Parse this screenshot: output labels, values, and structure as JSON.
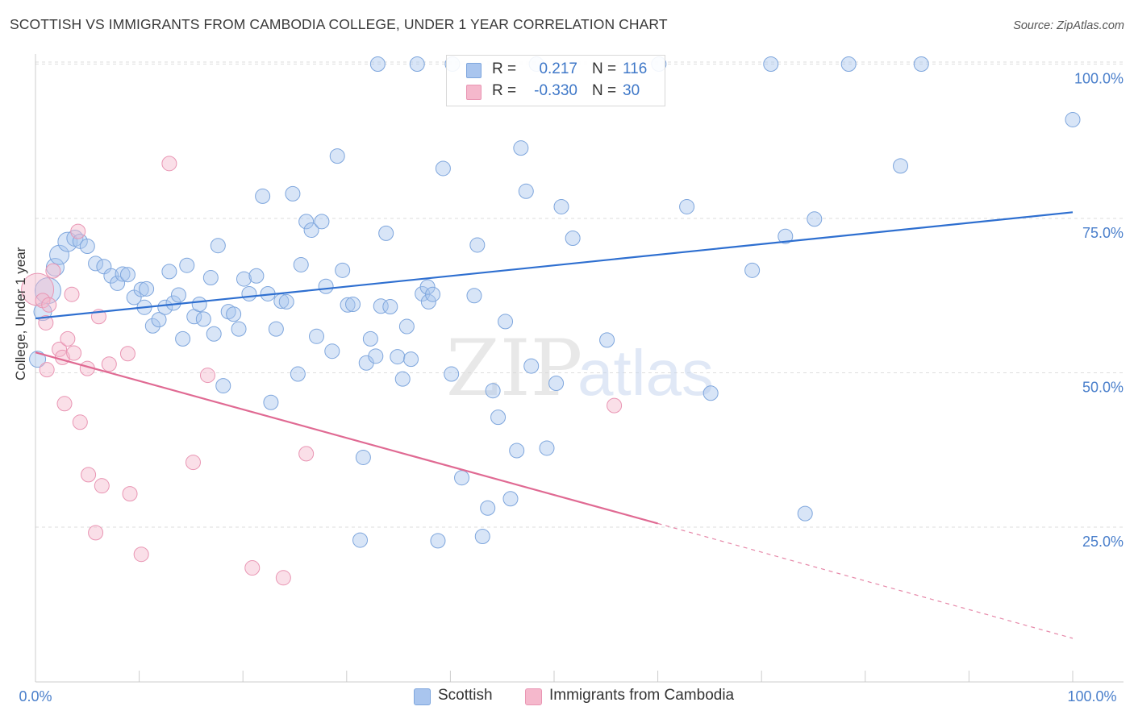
{
  "header": {
    "title": "SCOTTISH VS IMMIGRANTS FROM CAMBODIA COLLEGE, UNDER 1 YEAR CORRELATION CHART",
    "source": "Source: ZipAtlas.com"
  },
  "legend": {
    "rows": [
      {
        "r_label": "R =",
        "r_value": "0.217",
        "n_label": "N =",
        "n_value": "116",
        "color": "#a9c5ee"
      },
      {
        "r_label": "R =",
        "r_value": "-0.330",
        "n_label": "N =",
        "n_value": "30",
        "color": "#f5b8cc"
      }
    ]
  },
  "watermark": {
    "zip": "ZIP",
    "atlas": "atlas"
  },
  "colors": {
    "blue_fill": "#a9c5ee",
    "blue_stroke": "#7ea6dd",
    "blue_line": "#2e6fd0",
    "pink_fill": "#f5b8cc",
    "pink_stroke": "#e995b3",
    "pink_line": "#e06a93",
    "axis_label": "#4a7fcb",
    "grid": "#dddddd"
  },
  "chart_data": {
    "type": "scatter",
    "title": "SCOTTISH VS IMMIGRANTS FROM CAMBODIA COLLEGE, UNDER 1 YEAR CORRELATION CHART",
    "xlabel": "",
    "ylabel": "College, Under 1 year",
    "xlim": [
      0,
      100
    ],
    "ylim": [
      0,
      103
    ],
    "x_tick_labels": [
      "0.0%",
      "100.0%"
    ],
    "y_ticks": [
      25,
      50,
      75,
      100
    ],
    "y_tick_labels": [
      "25.0%",
      "50.0%",
      "75.0%",
      "100.0%"
    ],
    "grid": true,
    "legend_position": "top-center",
    "series": [
      {
        "name": "Scottish",
        "color": "#a9c5ee",
        "trend": {
          "x0": 0,
          "y0": 58.8,
          "x1": 100,
          "y1": 76.0,
          "style": "solid"
        },
        "points": [
          [
            0.2,
            52.2,
            10
          ],
          [
            0.7,
            59.9,
            11
          ],
          [
            1.2,
            63.3,
            16
          ],
          [
            1.9,
            67.1,
            11
          ],
          [
            2.3,
            69.1,
            12
          ],
          [
            3.1,
            71.2,
            12
          ],
          [
            3.8,
            71.8,
            10
          ],
          [
            4.3,
            71.3,
            9
          ],
          [
            5.0,
            70.5,
            9
          ],
          [
            5.8,
            67.7,
            9
          ],
          [
            6.6,
            67.2,
            9
          ],
          [
            7.3,
            65.7,
            9
          ],
          [
            7.9,
            64.5,
            9
          ],
          [
            8.4,
            66.0,
            9
          ],
          [
            8.9,
            65.9,
            9
          ],
          [
            9.5,
            62.2,
            9
          ],
          [
            10.2,
            63.5,
            9
          ],
          [
            10.5,
            60.6,
            9
          ],
          [
            10.7,
            63.6,
            9
          ],
          [
            11.3,
            57.6,
            9
          ],
          [
            11.9,
            58.6,
            9
          ],
          [
            12.5,
            60.6,
            9
          ],
          [
            12.9,
            66.4,
            9
          ],
          [
            13.3,
            61.3,
            9
          ],
          [
            13.8,
            62.6,
            9
          ],
          [
            14.2,
            55.5,
            9
          ],
          [
            14.6,
            67.4,
            9
          ],
          [
            15.3,
            59.1,
            9
          ],
          [
            15.8,
            61.1,
            9
          ],
          [
            16.2,
            58.7,
            9
          ],
          [
            16.9,
            65.4,
            9
          ],
          [
            17.2,
            56.3,
            9
          ],
          [
            17.6,
            70.6,
            9
          ],
          [
            18.1,
            47.9,
            9
          ],
          [
            18.6,
            59.9,
            9
          ],
          [
            19.1,
            59.5,
            9
          ],
          [
            19.6,
            57.1,
            9
          ],
          [
            20.1,
            65.2,
            9
          ],
          [
            20.6,
            62.8,
            9
          ],
          [
            21.3,
            65.7,
            9
          ],
          [
            21.9,
            78.6,
            9
          ],
          [
            22.4,
            62.8,
            9
          ],
          [
            22.7,
            45.2,
            9
          ],
          [
            23.2,
            57.1,
            9
          ],
          [
            23.7,
            61.6,
            9
          ],
          [
            24.2,
            61.5,
            9
          ],
          [
            24.8,
            79.0,
            9
          ],
          [
            25.3,
            49.8,
            9
          ],
          [
            25.6,
            67.5,
            9
          ],
          [
            26.1,
            74.5,
            9
          ],
          [
            26.6,
            73.1,
            9
          ],
          [
            27.1,
            55.9,
            9
          ],
          [
            27.6,
            74.5,
            9
          ],
          [
            28.0,
            64.0,
            9
          ],
          [
            28.6,
            53.5,
            9
          ],
          [
            29.1,
            85.1,
            9
          ],
          [
            29.6,
            66.6,
            9
          ],
          [
            30.1,
            61.0,
            9
          ],
          [
            30.6,
            61.1,
            9
          ],
          [
            31.3,
            22.9,
            9
          ],
          [
            31.6,
            36.3,
            9
          ],
          [
            31.9,
            51.6,
            9
          ],
          [
            32.3,
            55.5,
            9
          ],
          [
            32.8,
            52.7,
            9
          ],
          [
            33.3,
            60.8,
            9
          ],
          [
            33.8,
            72.6,
            9
          ],
          [
            34.2,
            60.7,
            9
          ],
          [
            34.9,
            52.6,
            9
          ],
          [
            35.4,
            49.0,
            9
          ],
          [
            35.8,
            57.5,
            9
          ],
          [
            36.2,
            52.2,
            9
          ],
          [
            37.3,
            62.8,
            9
          ],
          [
            37.8,
            63.9,
            9
          ],
          [
            37.9,
            61.5,
            9
          ],
          [
            38.3,
            62.7,
            9
          ],
          [
            38.8,
            22.8,
            9
          ],
          [
            39.3,
            83.1,
            9
          ],
          [
            40.1,
            49.8,
            9
          ],
          [
            41.1,
            33.0,
            9
          ],
          [
            42.3,
            62.5,
            9
          ],
          [
            42.6,
            70.7,
            9
          ],
          [
            43.1,
            23.5,
            9
          ],
          [
            43.6,
            28.1,
            9
          ],
          [
            44.1,
            47.1,
            9
          ],
          [
            44.6,
            42.8,
            9
          ],
          [
            45.3,
            58.3,
            9
          ],
          [
            45.8,
            29.6,
            9
          ],
          [
            46.4,
            37.4,
            9
          ],
          [
            46.8,
            86.4,
            9
          ],
          [
            47.3,
            79.4,
            9
          ],
          [
            47.8,
            51.1,
            9
          ],
          [
            49.3,
            37.8,
            9
          ],
          [
            50.2,
            48.3,
            9
          ],
          [
            50.7,
            76.9,
            9
          ],
          [
            51.8,
            71.8,
            9
          ],
          [
            55.1,
            55.3,
            9
          ],
          [
            60.1,
            100.0,
            9
          ],
          [
            62.8,
            76.9,
            9
          ],
          [
            65.1,
            46.7,
            9
          ],
          [
            69.1,
            66.6,
            9
          ],
          [
            70.9,
            100.0,
            9
          ],
          [
            72.3,
            72.1,
            9
          ],
          [
            74.2,
            27.2,
            9
          ],
          [
            75.1,
            74.9,
            9
          ],
          [
            78.4,
            100.0,
            9
          ],
          [
            83.4,
            83.5,
            9
          ],
          [
            85.4,
            100.0,
            9
          ],
          [
            100.0,
            91.0,
            9
          ],
          [
            33.0,
            100.0,
            9
          ],
          [
            36.8,
            100.0,
            9
          ],
          [
            40.2,
            100.0,
            9
          ],
          [
            48.3,
            100.0,
            9
          ]
        ]
      },
      {
        "name": "Immigrants from Cambodia",
        "color": "#f5b8cc",
        "trend": {
          "x0": 0,
          "y0": 53.3,
          "x1": 60,
          "y1": 25.6,
          "dashed_to_x": 100,
          "dashed_to_y": 7.0,
          "style": "solid-then-dashed"
        },
        "points": [
          [
            0.2,
            63.5,
            20
          ],
          [
            0.7,
            61.7,
            9
          ],
          [
            1.0,
            58.1,
            9
          ],
          [
            1.3,
            61.0,
            9
          ],
          [
            1.7,
            66.5,
            9
          ],
          [
            2.3,
            53.8,
            9
          ],
          [
            2.6,
            52.5,
            9
          ],
          [
            2.8,
            45.0,
            9
          ],
          [
            3.1,
            55.5,
            9
          ],
          [
            3.5,
            62.7,
            9
          ],
          [
            3.7,
            53.2,
            9
          ],
          [
            4.1,
            72.9,
            9
          ],
          [
            4.3,
            42.0,
            9
          ],
          [
            5.0,
            50.7,
            9
          ],
          [
            5.1,
            33.5,
            9
          ],
          [
            5.8,
            24.1,
            9
          ],
          [
            6.1,
            59.1,
            9
          ],
          [
            6.4,
            31.7,
            9
          ],
          [
            7.1,
            51.4,
            9
          ],
          [
            8.9,
            53.1,
            9
          ],
          [
            9.1,
            30.4,
            9
          ],
          [
            10.2,
            20.6,
            9
          ],
          [
            12.9,
            83.9,
            9
          ],
          [
            15.2,
            35.5,
            9
          ],
          [
            16.6,
            49.6,
            9
          ],
          [
            20.9,
            18.4,
            9
          ],
          [
            23.9,
            16.8,
            9
          ],
          [
            26.1,
            36.9,
            9
          ],
          [
            55.8,
            44.7,
            9
          ],
          [
            1.1,
            50.5,
            9
          ]
        ]
      }
    ]
  },
  "axis": {
    "ylabel": "College, Under 1 year",
    "x_left": "0.0%",
    "x_right": "100.0%"
  },
  "bottom_legend": {
    "items": [
      {
        "label": "Scottish",
        "color": "#a9c5ee"
      },
      {
        "label": "Immigrants from Cambodia",
        "color": "#f5b8cc"
      }
    ]
  }
}
